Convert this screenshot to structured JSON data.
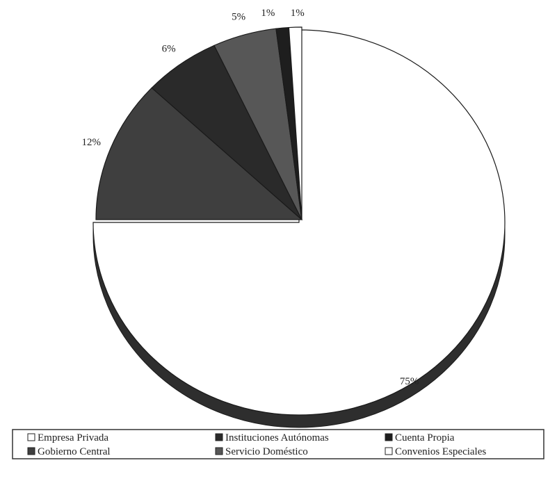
{
  "chart_data": {
    "type": "pie",
    "title": "",
    "slices": [
      {
        "label": "Empresa Privada",
        "value": 75,
        "value_label": "75%",
        "color": "#ffffff"
      },
      {
        "label": "Gobierno Central",
        "value": 12,
        "value_label": "12%",
        "color": "#3f3f3f"
      },
      {
        "label": "Instituciones Autónomas",
        "value": 6,
        "value_label": "6%",
        "color": "#2a2a2a"
      },
      {
        "label": "Servicio Doméstico",
        "value": 5,
        "value_label": "5%",
        "color": "#575757"
      },
      {
        "label": "Cuenta Propia",
        "value": 1,
        "value_label": "1%",
        "color": "#1e1e1e"
      },
      {
        "label": "Convenios Especiales",
        "value": 1,
        "value_label": "1%",
        "color": "#ffffff"
      }
    ],
    "legend": {
      "placement": "bottom",
      "rows": [
        [
          "Empresa Privada",
          "Instituciones Autónomas",
          "Cuenta Propia"
        ],
        [
          "Gobierno Central",
          "Servicio Doméstico",
          "Convenios Especiales"
        ]
      ]
    },
    "three_d": true,
    "exploded_first_quarter": true
  }
}
